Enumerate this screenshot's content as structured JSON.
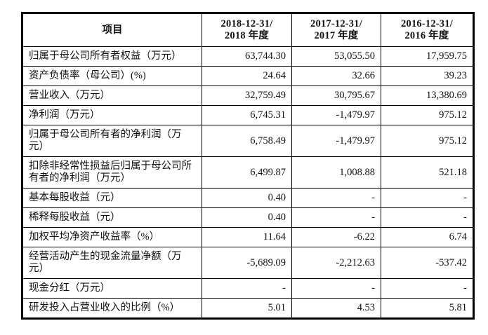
{
  "table": {
    "item_header": "项目",
    "period_headers": [
      "2018-12-31/\n2018 年度",
      "2017-12-31/\n2017 年度",
      "2016-12-31/\n2016 年度"
    ],
    "rows": [
      {
        "label": "归属于母公司所有者权益（万元）",
        "values": [
          "63,744.30",
          "53,055.50",
          "17,959.75"
        ]
      },
      {
        "label": "资产负债率（母公司）(%)",
        "values": [
          "24.64",
          "32.66",
          "39.23"
        ]
      },
      {
        "label": "营业收入（万元）",
        "values": [
          "32,759.49",
          "30,795.67",
          "13,380.69"
        ]
      },
      {
        "label": "净利润（万元）",
        "values": [
          "6,745.31",
          "-1,479.97",
          "975.12"
        ]
      },
      {
        "label": "归属于母公司所有者的净利润（万元）",
        "values": [
          "6,758.49",
          "-1,479.97",
          "975.12"
        ]
      },
      {
        "label": "扣除非经常性损益后归属于母公司所有者的净利润（万元）",
        "values": [
          "6,499.87",
          "1,008.88",
          "521.18"
        ]
      },
      {
        "label": "基本每股收益（元）",
        "values": [
          "0.40",
          "-",
          "-"
        ]
      },
      {
        "label": "稀释每股收益（元）",
        "values": [
          "0.40",
          "-",
          "-"
        ]
      },
      {
        "label": "加权平均净资产收益率（%）",
        "values": [
          "11.64",
          "-6.22",
          "6.74"
        ]
      },
      {
        "label": "经营活动产生的现金流量净额（万元）",
        "values": [
          "-5,689.09",
          "-2,212.63",
          "-537.42"
        ]
      },
      {
        "label": "现金分红（万元）",
        "values": [
          "-",
          "-",
          "-"
        ]
      },
      {
        "label": "研发投入占营业收入的比例（%）",
        "values": [
          "5.01",
          "4.53",
          "5.81"
        ]
      }
    ]
  }
}
